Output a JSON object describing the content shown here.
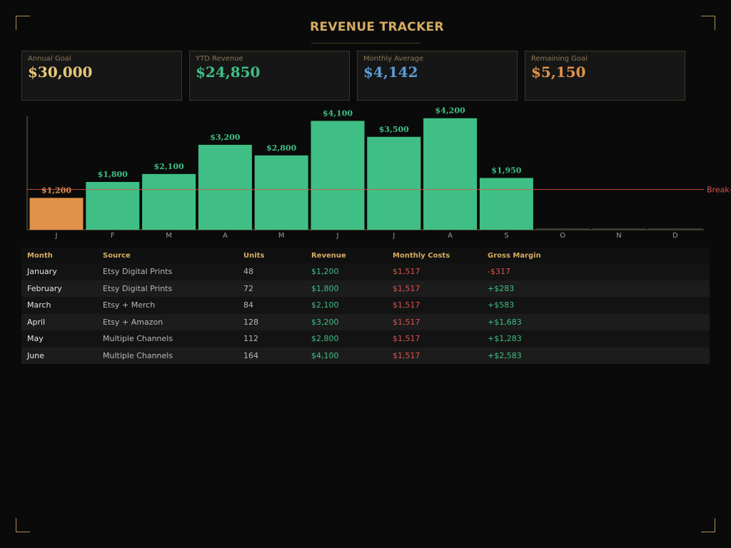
{
  "header": {
    "icon": "chart-icon",
    "icon_glyph": "",
    "title": "REVENUE TRACKER"
  },
  "kpis": [
    {
      "label": "Annual Goal",
      "value": "$30,000",
      "color": "#e8c87a"
    },
    {
      "label": "YTD Revenue",
      "value": "$24,850",
      "color": "#3fbf85"
    },
    {
      "label": "Monthly Average",
      "value": "$4,142",
      "color": "#5b9bd5"
    },
    {
      "label": "Remaining Goal",
      "value": "$5,150",
      "color": "#e0924a"
    }
  ],
  "chart_data": {
    "type": "bar",
    "categories": [
      "J",
      "F",
      "M",
      "A",
      "M",
      "J",
      "J",
      "A",
      "S",
      "O",
      "N",
      "D"
    ],
    "values": [
      1200,
      1800,
      2100,
      3200,
      2800,
      4100,
      3500,
      4200,
      1950,
      0,
      0,
      0
    ],
    "data_labels": [
      "$1,200",
      "$1,800",
      "$2,100",
      "$3,200",
      "$2,800",
      "$4,100",
      "$3,500",
      "$4,200",
      "$1,950",
      "",
      "",
      ""
    ],
    "reference_line": {
      "label": "Break-even",
      "value": 1517
    },
    "ylim": [
      0,
      4300
    ],
    "title": "",
    "xlabel": "",
    "ylabel": "",
    "colors": {
      "below_break_even": "#e0924a",
      "above_break_even": "#3fbf85",
      "reference": "#d9534f",
      "empty": "#3a3a3a"
    }
  },
  "table": {
    "columns": [
      "Month",
      "Source",
      "Units",
      "Revenue",
      "Monthly Costs",
      "Gross Margin"
    ],
    "rows": [
      [
        "January",
        "Etsy Digital Prints",
        "48",
        "$1,200",
        "$1,517",
        "-$317"
      ],
      [
        "February",
        "Etsy Digital Prints",
        "72",
        "$1,800",
        "$1,517",
        "+$283"
      ],
      [
        "March",
        "Etsy + Merch",
        "84",
        "$2,100",
        "$1,517",
        "+$583"
      ],
      [
        "April",
        "Etsy + Amazon",
        "128",
        "$3,200",
        "$1,517",
        "+$1,683"
      ],
      [
        "May",
        "Multiple Channels",
        "112",
        "$2,800",
        "$1,517",
        "+$1,283"
      ],
      [
        "June",
        "Multiple Channels",
        "164",
        "$4,100",
        "$1,517",
        "+$2,583"
      ]
    ],
    "colors": {
      "revenue": "#3fbf85",
      "costs": "#d9534f",
      "positive": "#3fbf85",
      "negative": "#d9534f"
    }
  }
}
